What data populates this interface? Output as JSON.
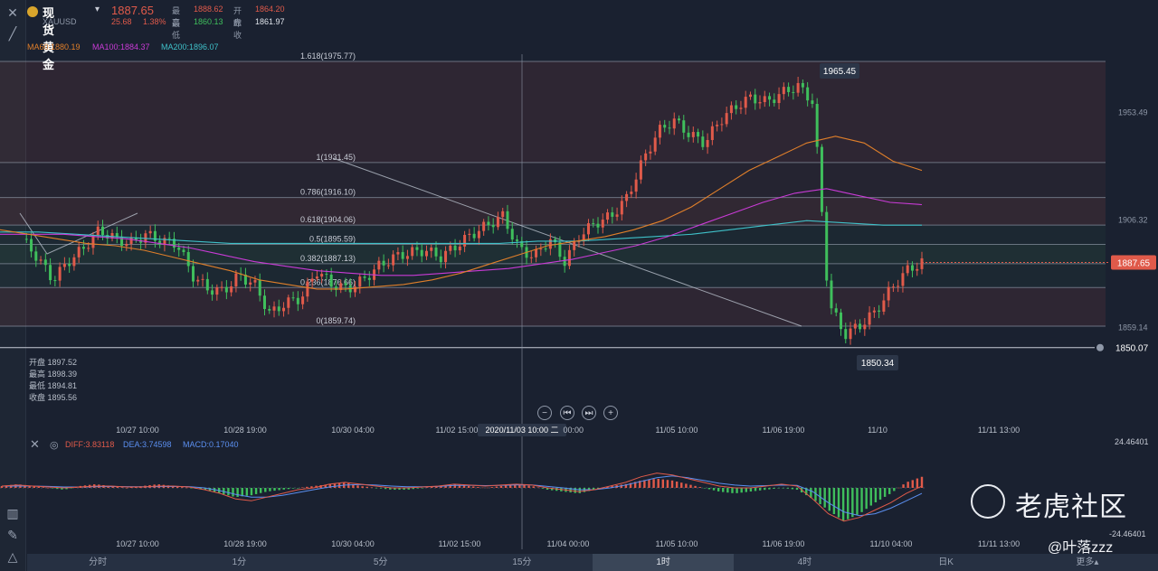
{
  "header": {
    "name": "现货黄金",
    "symbol": "XAUUSD",
    "price": "1887.65",
    "change": "25.68",
    "change_pct": "1.38%",
    "high_label": "最高",
    "high": "1888.62",
    "open_label": "开盘",
    "open": "1864.20",
    "low_label": "最低",
    "low": "1860.13",
    "prev_close_label": "昨收",
    "prev_close": "1861.97"
  },
  "ma": {
    "ma60": "MA60:1880.19",
    "ma100": "MA100:1884.37",
    "ma200": "MA200:1896.07"
  },
  "ohlc_panel": {
    "open": "开盘 1897.52",
    "high": "最高 1898.39",
    "low": "最低 1894.81",
    "close": "收盘 1895.56"
  },
  "macd": {
    "diff": "DIFF:3.83118",
    "dea": "DEA:3.74598",
    "macd": "MACD:0.17040",
    "axis_top": "24.46401",
    "axis_bottom": "-24.46401"
  },
  "timeframes": [
    "分时",
    "1分",
    "5分",
    "15分",
    "1时",
    "4时",
    "日K",
    "更多▴"
  ],
  "active_timeframe": 4,
  "watermark": {
    "brand": "老虎社区",
    "user": "@叶落zzz"
  },
  "colors": {
    "up": "#e05a4a",
    "down": "#3fbf5c",
    "ma60": "#e07f2a",
    "ma100": "#c93bd6",
    "ma200": "#3fc1c9",
    "fib_band_red": "#e0574a",
    "fib_band_green": "#4ab05a"
  },
  "chart_data": [
    {
      "type": "candlestick",
      "series_name": "现货黄金 XAUUSD",
      "x_tick_labels": [
        "10/27 10:00",
        "10/28 19:00",
        "10/30 04:00",
        "11/02 15:00",
        "2020/11/03 10:00 二",
        "11/05 10:00",
        "11/06 19:00",
        "11/10",
        "11/11 13:00"
      ],
      "y_axis_labels": [
        "1953.49",
        "1906.32",
        "1859.14",
        "1850.07"
      ],
      "ylim": [
        1842,
        1982
      ],
      "last_price": 1887.65,
      "min_marker": 1850.34,
      "max_marker": 1965.45,
      "fib_levels": [
        {
          "label": "1.618(1975.77)",
          "value": 1975.77
        },
        {
          "label": "1(1931.45)",
          "value": 1931.45
        },
        {
          "label": "0.786(1916.10)",
          "value": 1916.1
        },
        {
          "label": "0.618(1904.06)",
          "value": 1904.06
        },
        {
          "label": "0.5(1895.59)",
          "value": 1895.59
        },
        {
          "label": "0.382(1887.13)",
          "value": 1887.13
        },
        {
          "label": "0.236(1876.66)",
          "value": 1876.66
        },
        {
          "label": "0(1859.74)",
          "value": 1859.74
        }
      ],
      "close_path": [
        1898,
        1890,
        1880,
        1888,
        1894,
        1902,
        1898,
        1896,
        1900,
        1897,
        1896,
        1882,
        1876,
        1875,
        1882,
        1878,
        1865,
        1870,
        1872,
        1884,
        1878,
        1876,
        1880,
        1886,
        1890,
        1892,
        1893,
        1890,
        1895,
        1900,
        1904,
        1908,
        1894,
        1890,
        1898,
        1888,
        1900,
        1905,
        1908,
        1916,
        1932,
        1945,
        1950,
        1944,
        1940,
        1950,
        1956,
        1960,
        1958,
        1962,
        1965,
        1958,
        1870,
        1856,
        1860,
        1866,
        1876,
        1884,
        1887.65
      ],
      "ma60": [
        1902,
        1900,
        1898,
        1896,
        1895,
        1893,
        1890,
        1887,
        1884,
        1880,
        1878,
        1876,
        1876,
        1877,
        1878,
        1880,
        1883,
        1887,
        1891,
        1895,
        1897,
        1899,
        1902,
        1906,
        1912,
        1920,
        1928,
        1934,
        1940,
        1943,
        1940,
        1932,
        1928
      ],
      "ma100": [
        1900,
        1900,
        1900,
        1899,
        1898,
        1896,
        1894,
        1891,
        1888,
        1886,
        1884,
        1883,
        1882,
        1882,
        1883,
        1884,
        1885,
        1887,
        1889,
        1892,
        1895,
        1899,
        1904,
        1909,
        1914,
        1918,
        1920,
        1917,
        1914,
        1913
      ],
      "ma200": [
        1901,
        1901,
        1900,
        1899,
        1898,
        1897,
        1896,
        1896,
        1896,
        1896,
        1896,
        1896,
        1896,
        1896,
        1897,
        1897,
        1898,
        1899,
        1900,
        1902,
        1904,
        1906,
        1905,
        1904,
        1904
      ]
    },
    {
      "type": "bar",
      "series_name": "MACD",
      "ylim": [
        -24.46401,
        24.46401
      ],
      "values": [
        1,
        2,
        1,
        0,
        -1,
        1,
        2,
        1,
        0,
        1,
        2,
        1,
        0,
        -1,
        -3,
        -5,
        -4,
        -2,
        -1,
        0,
        1,
        2,
        3,
        1,
        0,
        -1,
        -1,
        0,
        1,
        2,
        1,
        0,
        1,
        2,
        1,
        -1,
        -2,
        -3,
        -1,
        1,
        2,
        4,
        5,
        4,
        2,
        0,
        -2,
        -3,
        -2,
        -1,
        0,
        -1,
        -6,
        -12,
        -18,
        -14,
        -8,
        -3,
        3,
        6
      ],
      "diff": [
        1,
        1.5,
        1,
        0.5,
        0,
        0.5,
        1,
        1,
        0.5,
        0.5,
        1,
        1,
        0.5,
        -1,
        -3,
        -6,
        -7,
        -5,
        -3,
        -1,
        0,
        2,
        3,
        2,
        1,
        0,
        0,
        0.5,
        1,
        2,
        1.5,
        1,
        1.5,
        2,
        1.5,
        0,
        -1,
        -2,
        -1,
        1,
        3,
        6,
        8,
        7,
        5,
        3,
        1,
        0,
        0,
        1,
        2,
        1,
        -6,
        -14,
        -18,
        -16,
        -12,
        -8,
        -3,
        1
      ],
      "dea": [
        1,
        1,
        1,
        0.8,
        0.5,
        0.5,
        0.7,
        0.8,
        0.7,
        0.6,
        0.7,
        0.8,
        0.7,
        0,
        -1.5,
        -3.5,
        -5,
        -5,
        -4,
        -2.5,
        -1,
        0.5,
        1.5,
        1.8,
        1.5,
        1,
        0.6,
        0.6,
        0.8,
        1.3,
        1.4,
        1.2,
        1.3,
        1.6,
        1.6,
        0.8,
        0,
        -1,
        -1,
        0,
        1.5,
        3.5,
        5.5,
        6.5,
        5.5,
        4,
        2.5,
        1.5,
        1,
        1.2,
        1.5,
        1.3,
        -2,
        -8,
        -13,
        -15,
        -14,
        -11,
        -7,
        -3
      ]
    }
  ]
}
